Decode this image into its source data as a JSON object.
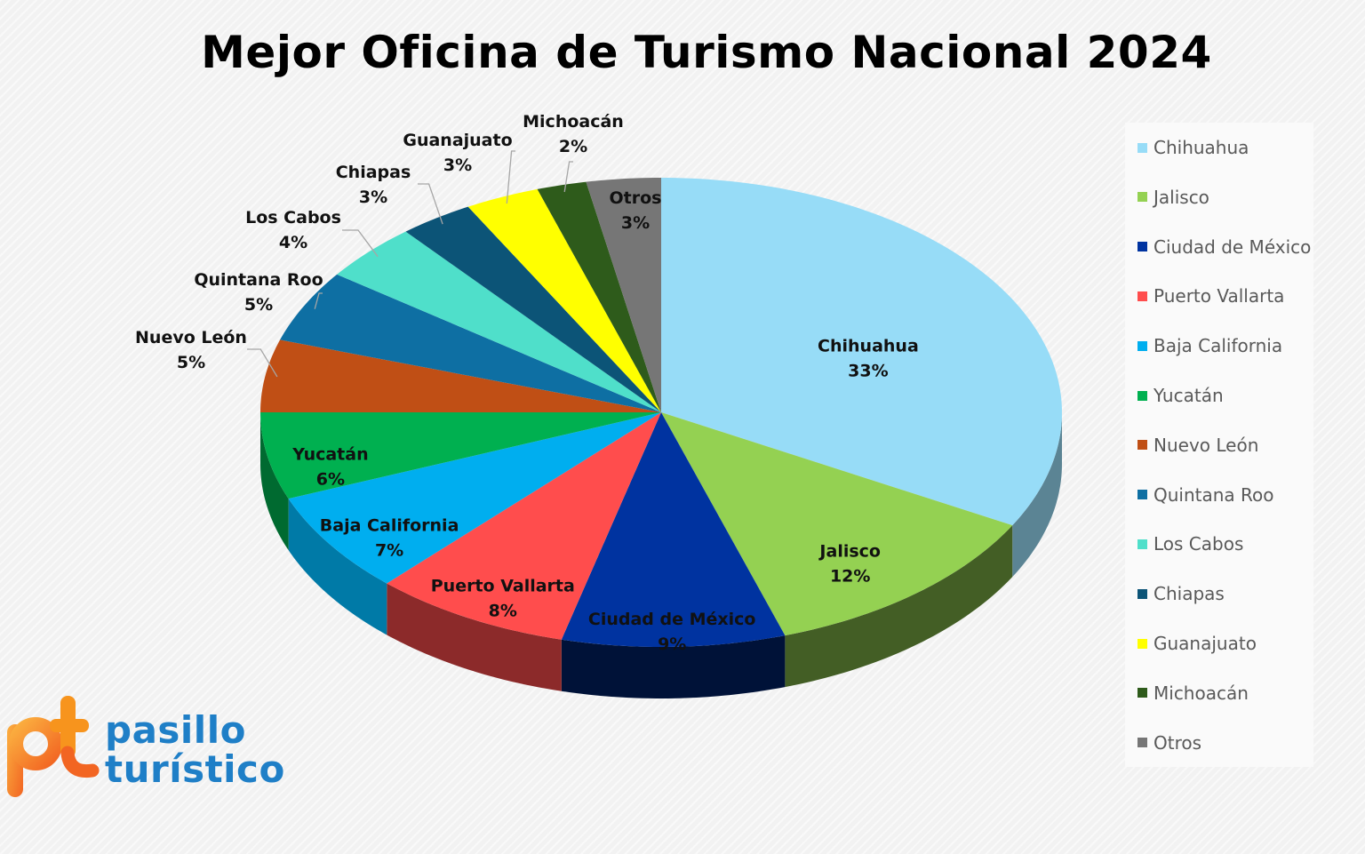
{
  "chart_data": {
    "type": "pie",
    "title": "Mejor Oficina de Turismo Nacional 2024",
    "legend_position": "right",
    "slices": [
      {
        "label": "Chihuahua",
        "value": 33,
        "value_label": "33%",
        "color": "#97dcf7"
      },
      {
        "label": "Jalisco",
        "value": 12,
        "value_label": "12%",
        "color": "#94d152"
      },
      {
        "label": "Ciudad de México",
        "value": 9,
        "value_label": "9%",
        "color": "#0033a0"
      },
      {
        "label": "Puerto Vallarta",
        "value": 8,
        "value_label": "8%",
        "color": "#ff4d4d"
      },
      {
        "label": "Baja California",
        "value": 7,
        "value_label": "7%",
        "color": "#00aeef"
      },
      {
        "label": "Yucatán",
        "value": 6,
        "value_label": "6%",
        "color": "#00b050"
      },
      {
        "label": "Nuevo León",
        "value": 5,
        "value_label": "5%",
        "color": "#c04f15"
      },
      {
        "label": "Quintana Roo",
        "value": 5,
        "value_label": "5%",
        "color": "#0e6fa3"
      },
      {
        "label": "Los Cabos",
        "value": 4,
        "value_label": "4%",
        "color": "#4fdfca"
      },
      {
        "label": "Chiapas",
        "value": 3,
        "value_label": "3%",
        "color": "#0c5477"
      },
      {
        "label": "Guanajuato",
        "value": 3,
        "value_label": "3%",
        "color": "#ffff00"
      },
      {
        "label": "Michoacán",
        "value": 2,
        "value_label": "2%",
        "color": "#2e5b1b"
      },
      {
        "label": "Otros",
        "value": 3,
        "value_label": "3%",
        "color": "#767676"
      }
    ]
  },
  "logo": {
    "line1": "pasillo",
    "line2": "turístico",
    "mark_text": "pt",
    "colors": [
      "#f7941d",
      "#1f7fc7"
    ]
  }
}
